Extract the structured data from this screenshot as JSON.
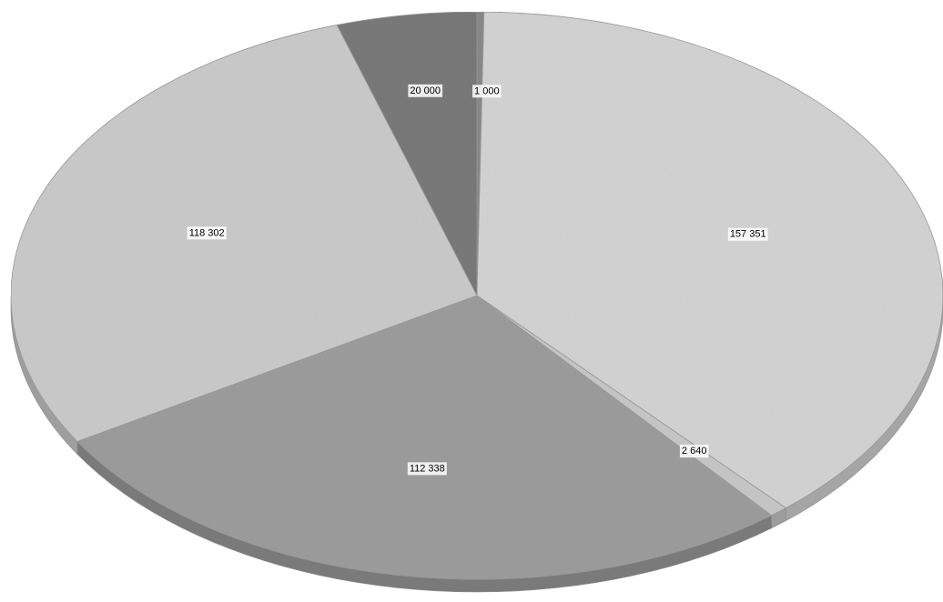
{
  "chart_data": {
    "type": "pie",
    "style": "3d",
    "slices": [
      {
        "label": "1 000",
        "value": 1000,
        "color": "#8a8a8a"
      },
      {
        "label": "157 351",
        "value": 157351,
        "color": "#d4d4d4"
      },
      {
        "label": "2 640",
        "value": 2640,
        "color": "#c8c8c8"
      },
      {
        "label": "112 338",
        "value": 112338,
        "color": "#9d9d9d"
      },
      {
        "label": "118 302",
        "value": 118302,
        "color": "#cbcbcb"
      },
      {
        "label": "20 000",
        "value": 20000,
        "color": "#7a7a7a"
      }
    ],
    "legend": "none"
  }
}
